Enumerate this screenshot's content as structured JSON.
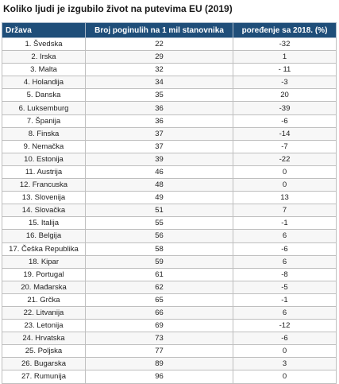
{
  "title": "Koliko ljudi je izgubilo život na putevima EU (2019)",
  "table": {
    "headers": [
      "Država",
      "Broj poginulih na 1 mil stanovnika",
      "poređenje sa 2018. (%)"
    ],
    "rows": [
      [
        "1. Švedska",
        "22",
        "-32"
      ],
      [
        "2. Irska",
        "29",
        "1"
      ],
      [
        "3. Malta",
        "32",
        "- 11"
      ],
      [
        "4. Holandija",
        "34",
        "-3"
      ],
      [
        "5. Danska",
        "35",
        "20"
      ],
      [
        "6. Luksemburg",
        "36",
        "-39"
      ],
      [
        "7. Španija",
        "36",
        "-6"
      ],
      [
        "8. Finska",
        "37",
        "-14"
      ],
      [
        "9. Nemačka",
        "37",
        "-7"
      ],
      [
        "10. Estonija",
        "39",
        "-22"
      ],
      [
        "11. Austrija",
        "46",
        "0"
      ],
      [
        "12. Francuska",
        "48",
        "0"
      ],
      [
        "13. Slovenija",
        "49",
        "13"
      ],
      [
        "14. Slovačka",
        "51",
        "7"
      ],
      [
        "15. Italija",
        "55",
        "-1"
      ],
      [
        "16. Belgija",
        "56",
        "6"
      ],
      [
        "17. Češka Republika",
        "58",
        "-6"
      ],
      [
        "18. Kipar",
        "59",
        "6"
      ],
      [
        "19. Portugal",
        "61",
        "-8"
      ],
      [
        "20. Mađarska",
        "62",
        "-5"
      ],
      [
        "21. Grčka",
        "65",
        "-1"
      ],
      [
        "22. Litvanija",
        "66",
        "6"
      ],
      [
        "23. Letonija",
        "69",
        "-12"
      ],
      [
        "24. Hrvatska",
        "73",
        "-6"
      ],
      [
        "25. Poljska",
        "77",
        "0"
      ],
      [
        "26. Bugarska",
        "89",
        "3"
      ],
      [
        "27. Rumunija",
        "96",
        "0"
      ]
    ]
  },
  "colors": {
    "header_bg": "#1f4e79",
    "header_text": "#ffffff",
    "border": "#bfbfbf"
  }
}
